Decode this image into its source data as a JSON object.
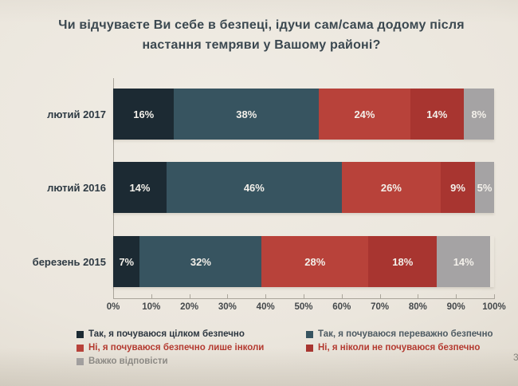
{
  "slide": {
    "title": "Чи відчуваєте Ви себе в безпеці, ідучи сам/сама додому після настання темряви у Вашому районі?",
    "page_number": "3"
  },
  "chart_data": {
    "type": "bar",
    "orientation": "horizontal",
    "stacked": true,
    "title": "Чи відчуваєте Ви себе в безпеці, ідучи сам/сама додому після настання темряви у Вашому районі?",
    "categories": [
      "лютий 2017",
      "лютий 2016",
      "березень 2015"
    ],
    "series": [
      {
        "name": "Так, я почуваюся цілком безпечно",
        "color": "#1c2a33",
        "label_color": "#2c3640",
        "values": [
          16,
          14,
          7
        ]
      },
      {
        "name": "Так, я почуваюся переважно  безпечно",
        "color": "#375460",
        "label_color": "#4d5a62",
        "values": [
          38,
          46,
          32
        ]
      },
      {
        "name": "Ні, я почуваюся безпечно лише інколи",
        "color": "#b8423a",
        "label_color": "#b43a30",
        "values": [
          24,
          26,
          28
        ]
      },
      {
        "name": "Ні, я ніколи не почуваюся безпечно",
        "color": "#a83530",
        "label_color": "#b43a30",
        "values": [
          14,
          9,
          18
        ]
      },
      {
        "name": "Важко відповісти",
        "color": "#a5a3a4",
        "label_color": "#8e8c88",
        "values": [
          8,
          5,
          14
        ]
      }
    ],
    "value_suffix": "%",
    "xlim": [
      0,
      100
    ],
    "x_ticks": [
      "0%",
      "10%",
      "20%",
      "30%",
      "40%",
      "50%",
      "60%",
      "70%",
      "80%",
      "90%",
      "100%"
    ],
    "grid": false,
    "legend_position": "bottom-left, two columns"
  }
}
